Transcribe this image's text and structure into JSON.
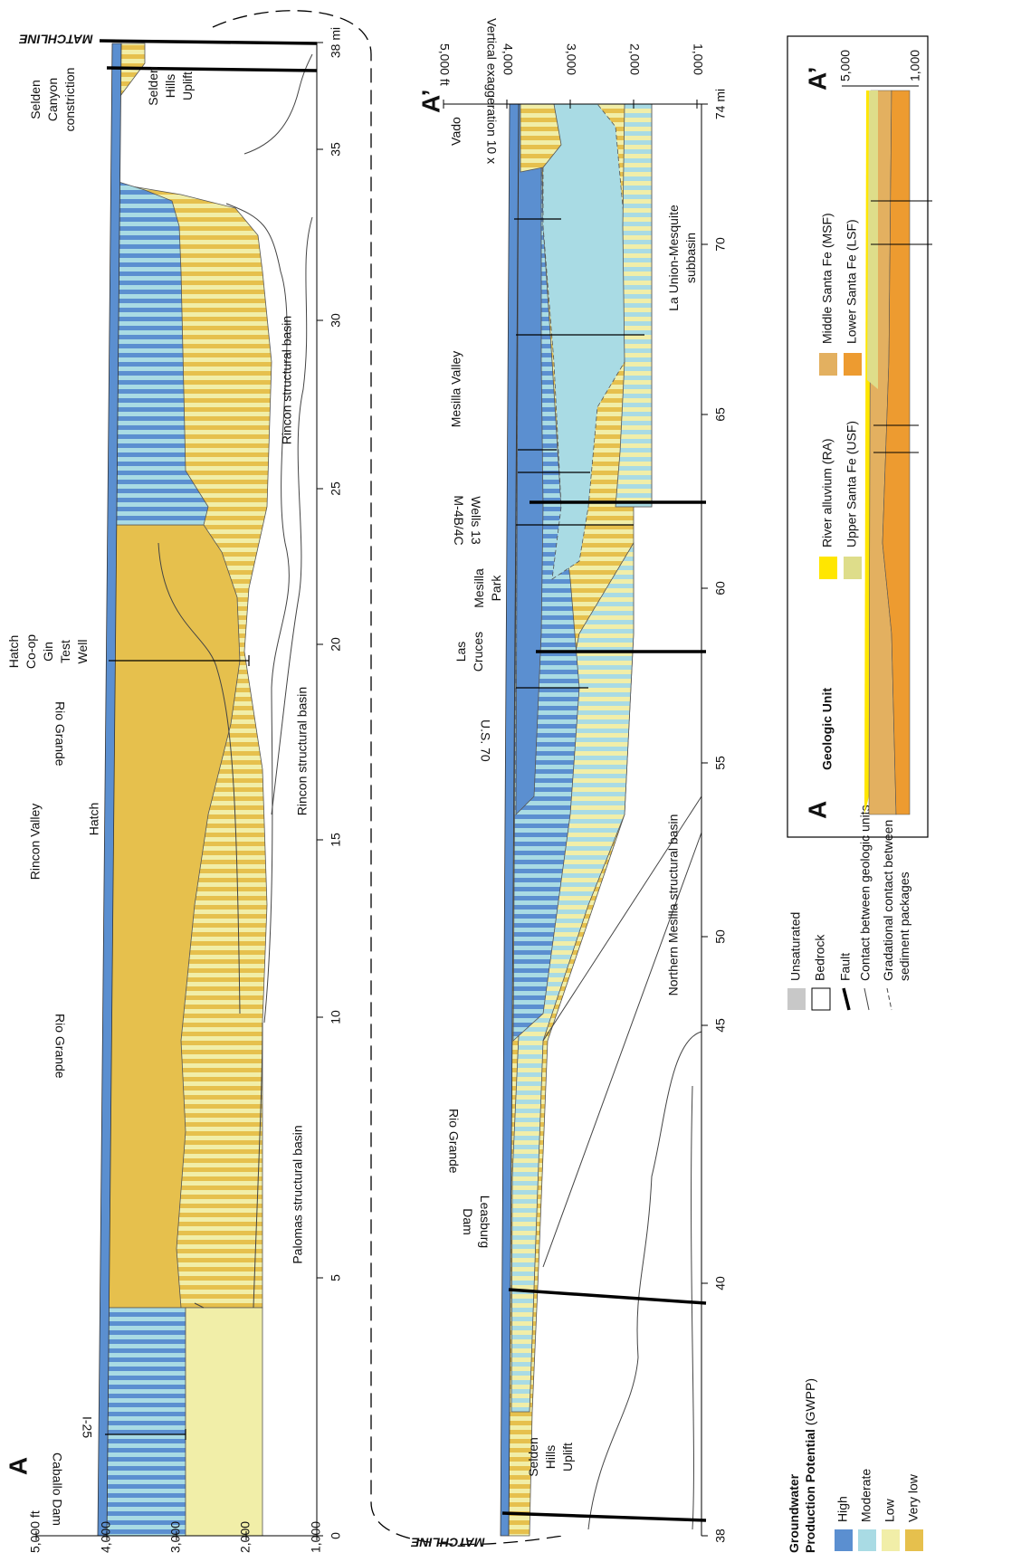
{
  "section_1": {
    "label": "A",
    "matchline": "MATCHLINE",
    "elevation_ticks": [
      "5,000 ft",
      "4,000",
      "3,000",
      "2,000",
      "1,000"
    ],
    "mile_ticks": [
      "0",
      "5",
      "10",
      "15",
      "20",
      "25",
      "30",
      "35",
      "38 mi"
    ],
    "annotations": {
      "caballo_dam": "Caballo Dam",
      "i25": "I-25",
      "rio_grande_1": "Rio Grande",
      "rio_grande_2": "Rio Grande",
      "rincon_valley": "Rincon Valley",
      "hatch": "Hatch",
      "test_well": [
        "Hatch",
        "Co-op",
        "Gin",
        "Test",
        "Well"
      ],
      "selden_canyon": [
        "Selden",
        "Canyon",
        "constriction"
      ],
      "selden_hills": [
        "Selden",
        "Hills",
        "Uplift"
      ],
      "rincon_basin_1": "Rincon structural basin",
      "rincon_basin_2": "Rincon structural basin",
      "palomas_basin": "Palomas structural basin"
    }
  },
  "section_2": {
    "label": "A’",
    "matchline": "MATCHLINE",
    "vertical_exaggeration": "Vertical exaggeration 10 x",
    "elevation_ticks": [
      "5,000 ft",
      "4,000",
      "3,000",
      "2,000",
      "1,000"
    ],
    "mile_ticks": [
      "38",
      "40",
      "45",
      "50",
      "55",
      "60",
      "65",
      "70",
      "74 mi"
    ],
    "annotations": {
      "selden_hills": [
        "Selden",
        "Hills",
        "Uplift"
      ],
      "leasburg_dam": [
        "Leasburg",
        "Dam"
      ],
      "rio_grande": "Rio Grande",
      "northern_mesilla": "Northern Mesilla structural basin",
      "us70": "U.S. 70",
      "las_cruces": [
        "Las",
        "Cruces"
      ],
      "mesilla_park": [
        "Mesilla",
        "Park"
      ],
      "wells": [
        "Wells 13",
        "M-4B/4C"
      ],
      "mesilla_valley": "Mesilla Valley",
      "la_union": [
        "La Union-Mesquite",
        "subbasin"
      ],
      "vado": "Vado"
    }
  },
  "legend": {
    "gwpp_title": [
      "Groundwater",
      "Production Potential"
    ],
    "gwpp_abbrev": "(GWPP)",
    "gwpp_classes": [
      "High",
      "Moderate",
      "Low",
      "Very low"
    ],
    "unsaturated": "Unsaturated",
    "bedrock": "Bedrock",
    "fault": "Fault",
    "contact": "Contact between geologic units",
    "gradational": [
      "Gradational contact between",
      "sediment packages"
    ]
  },
  "geologic_unit_legend": {
    "title": "Geologic Unit",
    "label_a": "A",
    "label_a_prime": "A’",
    "elevation_ticks": [
      "5,000",
      "1,000"
    ],
    "units": [
      "River alluvium (RA)",
      "Upper Santa Fe (USF)",
      "Middle Santa Fe (MSF)",
      "Lower Santa Fe (LSF)"
    ]
  }
}
